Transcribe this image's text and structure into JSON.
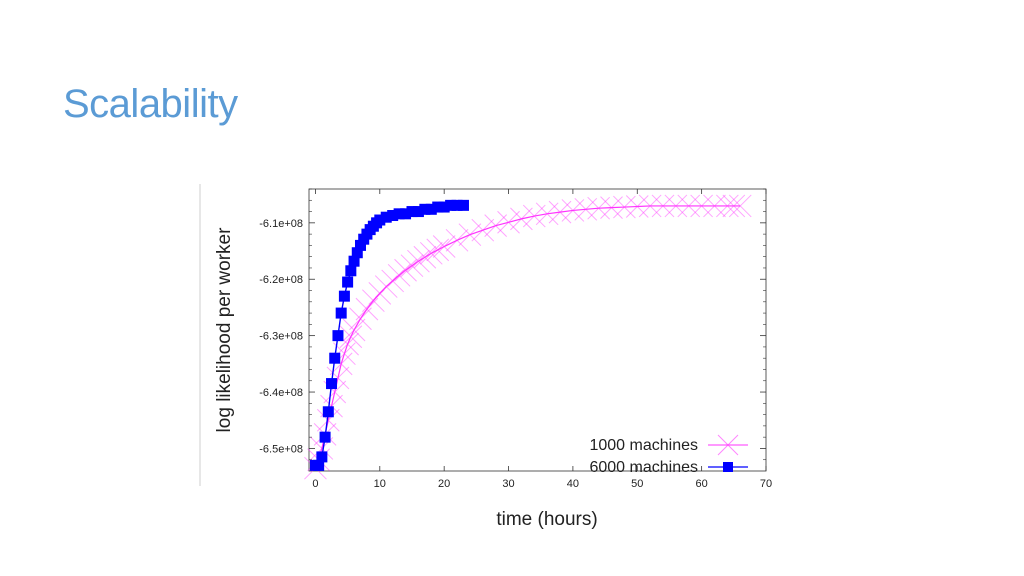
{
  "slide": {
    "title": "Scalability"
  },
  "colors": {
    "title": "#5b9bd5",
    "series_1000": "#ff33ff",
    "series_6000": "#0000ff"
  },
  "chart_data": {
    "type": "line",
    "title": "",
    "xlabel": "time (hours)",
    "ylabel": "log likelihood per worker",
    "xlim": [
      -1,
      70
    ],
    "ylim": [
      -654000000,
      -604000000
    ],
    "xticks": [
      0,
      10,
      20,
      30,
      40,
      50,
      60,
      70
    ],
    "xtick_labels": [
      "0",
      "10",
      "20",
      "30",
      "40",
      "50",
      "60",
      "70"
    ],
    "yticks": [
      -650000000,
      -640000000,
      -630000000,
      -620000000,
      -610000000
    ],
    "ytick_labels": [
      "-6.5e+08",
      "-6.4e+08",
      "-6.3e+08",
      "-6.2e+08",
      "-6.1e+08"
    ],
    "grid": false,
    "legend_position": "bottom-right",
    "series": [
      {
        "name": "1000 machines",
        "marker": "x",
        "x": [
          0,
          0.5,
          1,
          1.5,
          2,
          2.5,
          3,
          3.5,
          4,
          4.5,
          5,
          5.5,
          6,
          7,
          8,
          9,
          10,
          11,
          12,
          13,
          14,
          15,
          16,
          17,
          18,
          19,
          20,
          22,
          24,
          26,
          28,
          30,
          32,
          34,
          36,
          38,
          40,
          42,
          44,
          46,
          48,
          50,
          52,
          54,
          56,
          58,
          60,
          62,
          64,
          65,
          66
        ],
        "y": [
          -653500000,
          -652000000,
          -650000000,
          -647500000,
          -645000000,
          -642500000,
          -640000000,
          -637500000,
          -635000000,
          -633200000,
          -631500000,
          -630200000,
          -629000000,
          -627000000,
          -625300000,
          -623800000,
          -622500000,
          -621300000,
          -620300000,
          -619300000,
          -618400000,
          -617600000,
          -616800000,
          -616100000,
          -615400000,
          -614800000,
          -614200000,
          -613100000,
          -612100000,
          -611300000,
          -610500000,
          -609900000,
          -609300000,
          -608800000,
          -608400000,
          -608100000,
          -607800000,
          -607600000,
          -607400000,
          -607300000,
          -607200000,
          -607100000,
          -607000000,
          -607000000,
          -607000000,
          -607000000,
          -607000000,
          -607000000,
          -607000000,
          -607000000,
          -607000000
        ]
      },
      {
        "name": "6000 machines",
        "marker": "square",
        "x": [
          0,
          0.5,
          1,
          1.5,
          2,
          2.5,
          3,
          3.5,
          4,
          4.5,
          5,
          5.5,
          6,
          6.5,
          7,
          7.5,
          8,
          8.5,
          9,
          9.5,
          10,
          11,
          12,
          13,
          14,
          15,
          16,
          17,
          18,
          19,
          20,
          21,
          22,
          23
        ],
        "y": [
          -653000000,
          -653000000,
          -651500000,
          -648000000,
          -643500000,
          -638500000,
          -634000000,
          -630000000,
          -626000000,
          -623000000,
          -620500000,
          -618500000,
          -616800000,
          -615300000,
          -614000000,
          -612900000,
          -612000000,
          -611200000,
          -610600000,
          -610000000,
          -609500000,
          -609000000,
          -608700000,
          -608400000,
          -608400000,
          -608000000,
          -608000000,
          -607600000,
          -607600000,
          -607200000,
          -607200000,
          -606900000,
          -606900000,
          -606900000
        ]
      }
    ]
  }
}
